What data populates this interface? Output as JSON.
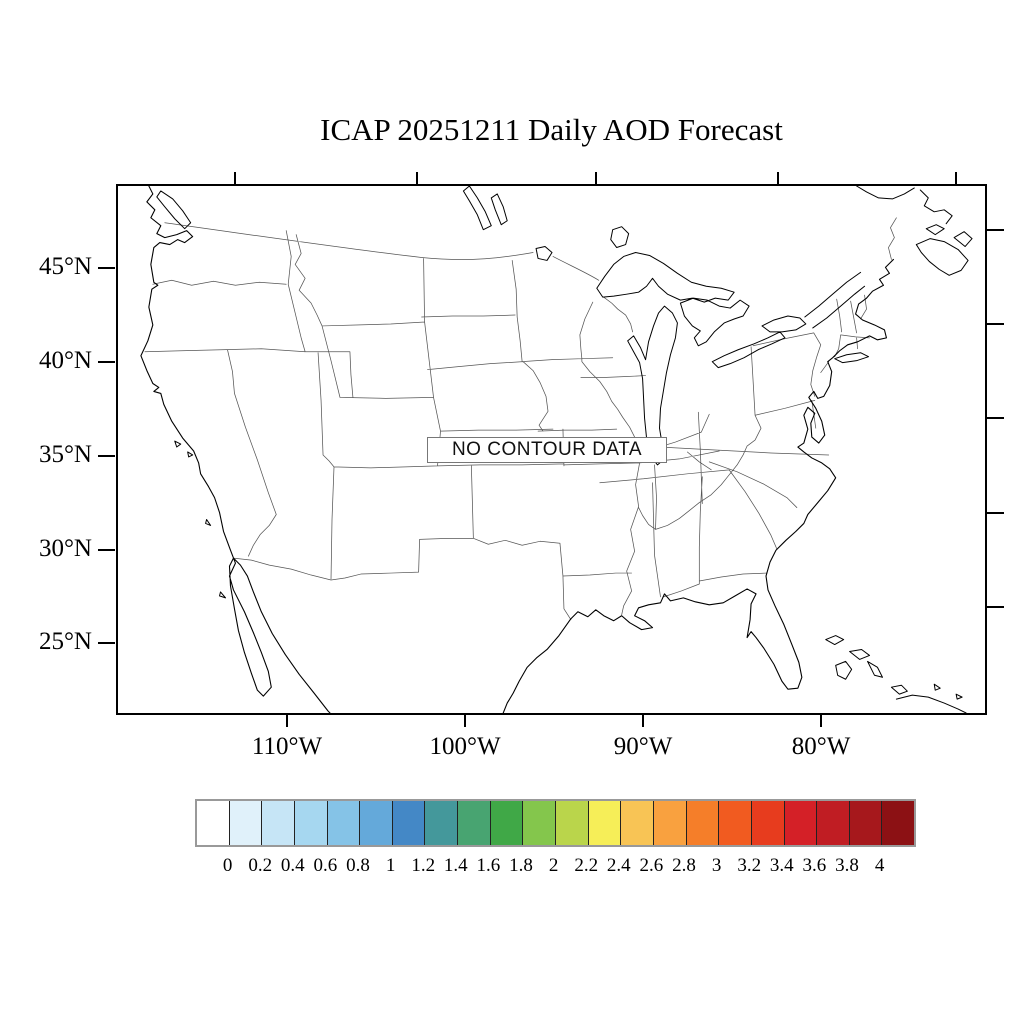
{
  "title": "ICAP 20251211 Daily AOD Forecast",
  "map": {
    "no_data_label": "NO CONTOUR DATA",
    "y_axis": {
      "tick_labels": [
        "45°N",
        "40°N",
        "35°N",
        "30°N",
        "25°N"
      ]
    },
    "x_axis": {
      "tick_labels": [
        "110°W",
        "100°W",
        "90°W",
        "80°W"
      ]
    }
  },
  "colorbar": {
    "tick_labels": [
      "0",
      "0.2",
      "0.4",
      "0.6",
      "0.8",
      "1",
      "1.2",
      "1.4",
      "1.6",
      "1.8",
      "2",
      "2.2",
      "2.4",
      "2.6",
      "2.8",
      "3",
      "3.2",
      "3.4",
      "3.6",
      "3.8",
      "4"
    ],
    "colors": [
      "#ffffff",
      "#e0f1fa",
      "#c6e5f6",
      "#a6d7f0",
      "#85c3e7",
      "#64a9da",
      "#4488c6",
      "#44989b",
      "#48a471",
      "#40a847",
      "#84c64c",
      "#bad54b",
      "#f6ee58",
      "#f8c455",
      "#f9a13f",
      "#f57e29",
      "#f15b20",
      "#e73c1e",
      "#d42027",
      "#c01d23",
      "#a6181c",
      "#8c1114"
    ],
    "value_range": [
      0,
      4
    ]
  }
}
